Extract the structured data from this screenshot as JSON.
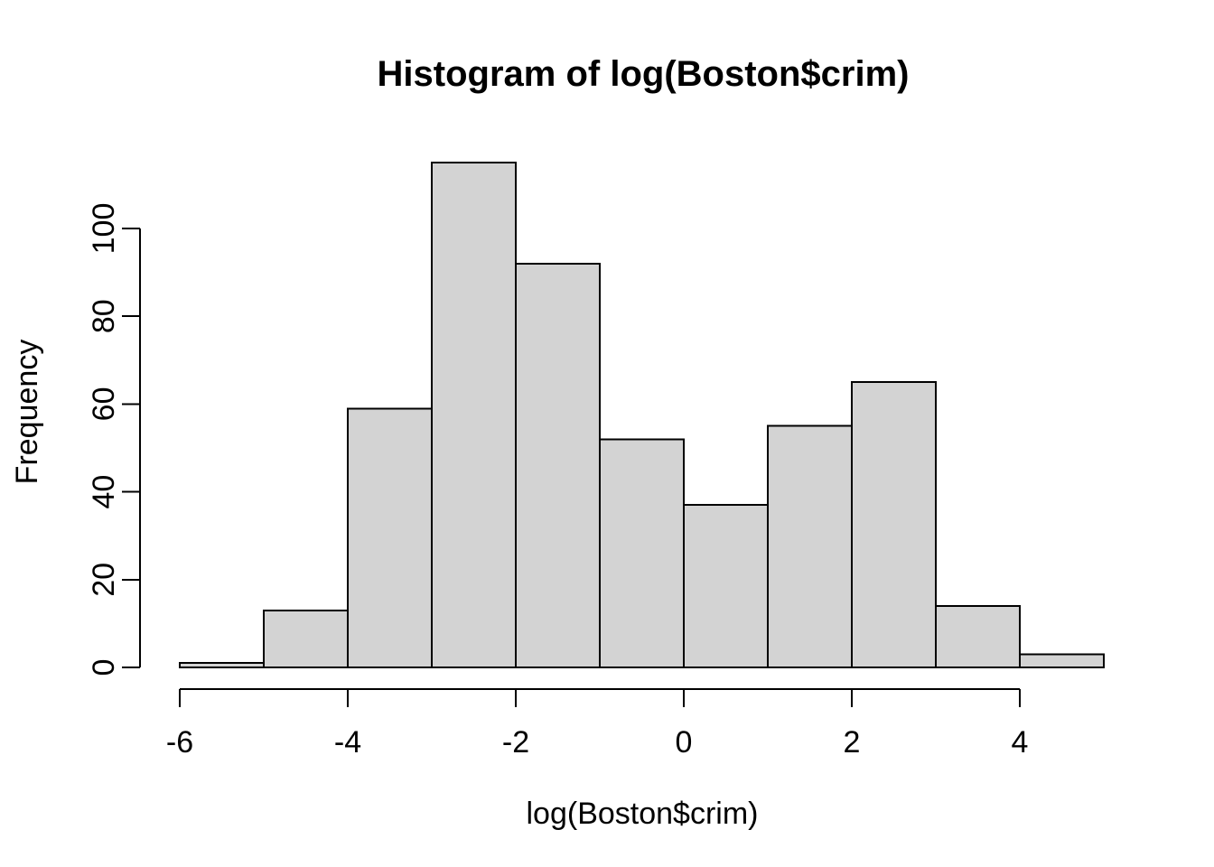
{
  "chart_data": {
    "type": "bar",
    "subtype": "histogram",
    "title": "Histogram of log(Boston$crim)",
    "xlabel": "log(Boston$crim)",
    "ylabel": "Frequency",
    "bin_breaks": [
      -6,
      -5,
      -4,
      -3,
      -2,
      -1,
      0,
      1,
      2,
      3,
      4,
      5
    ],
    "counts": [
      1,
      13,
      59,
      115,
      92,
      52,
      37,
      55,
      65,
      14,
      3
    ],
    "x_ticks": [
      -6,
      -4,
      -2,
      0,
      2,
      4
    ],
    "y_ticks": [
      0,
      20,
      40,
      60,
      80,
      100
    ],
    "xlim": [
      -6,
      5
    ],
    "ylim": [
      0,
      115
    ],
    "total_observations": 506,
    "grid": false,
    "legend": false,
    "colors": {
      "bar_fill": "#d3d3d3",
      "bar_stroke": "#000000",
      "axis": "#000000",
      "text": "#000000",
      "background": "#ffffff"
    }
  }
}
